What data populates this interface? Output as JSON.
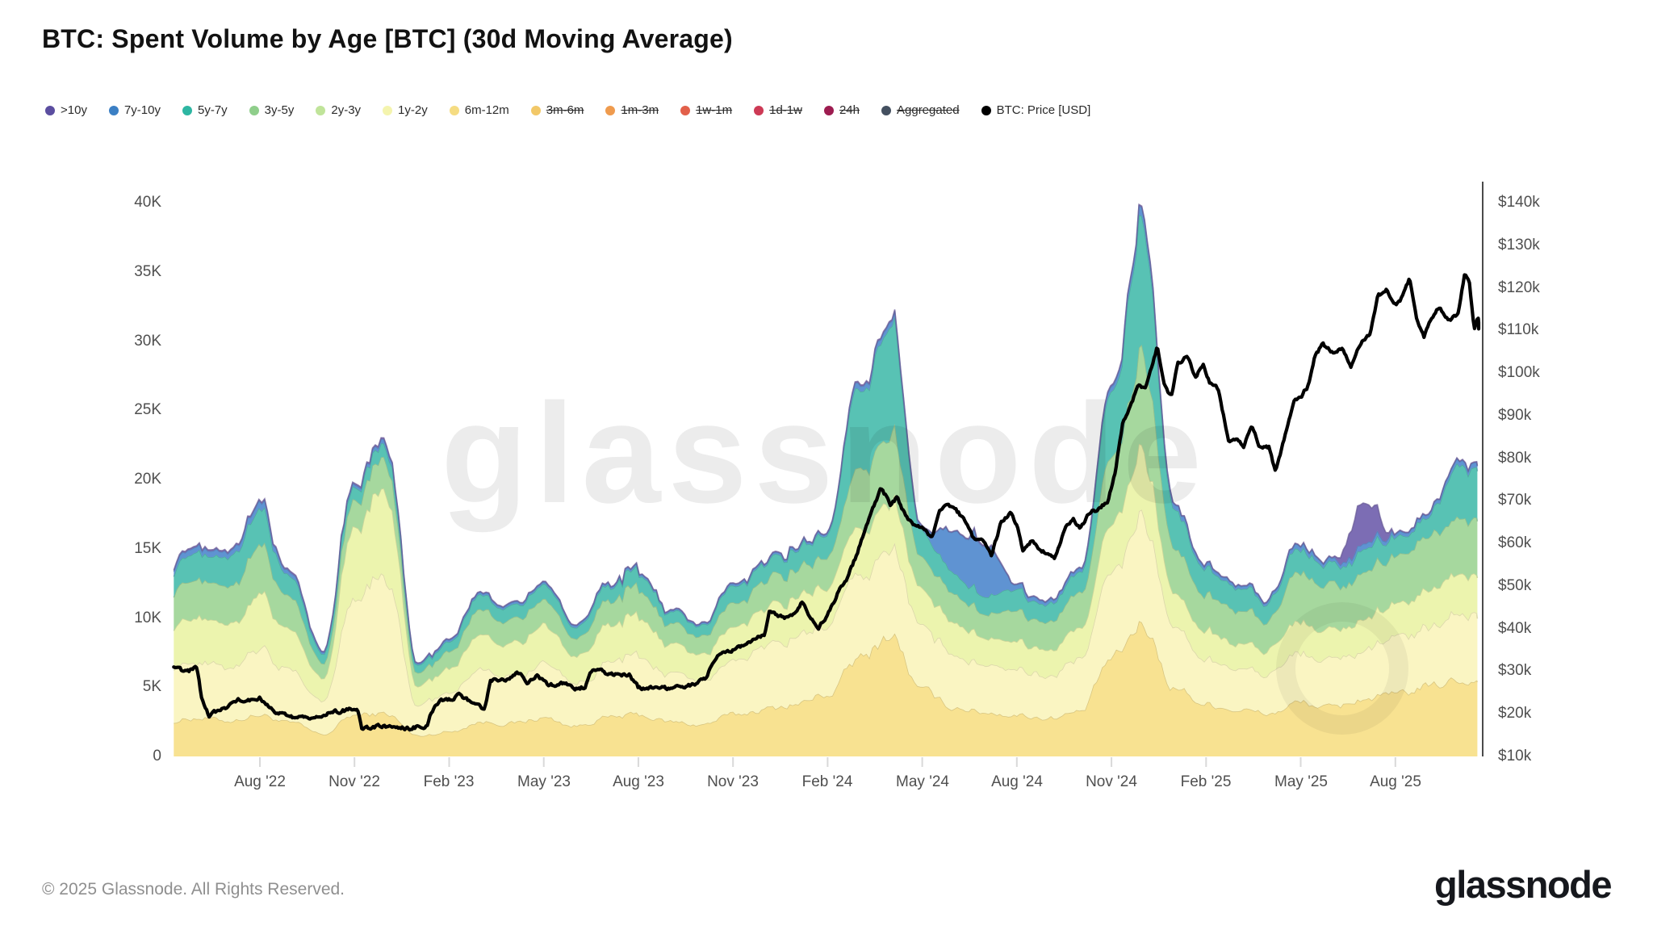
{
  "title": "BTC: Spent Volume by Age [BTC] (30d Moving Average)",
  "watermark": {
    "text": "glassnode"
  },
  "footer": {
    "copyright": "© 2025 Glassnode. All Rights Reserved.",
    "brand": "glassnode"
  },
  "legend": [
    {
      "label": ">10y",
      "color": "#5B4EA0",
      "disabled": false
    },
    {
      "label": "7y-10y",
      "color": "#3B7FC4",
      "disabled": false
    },
    {
      "label": "5y-7y",
      "color": "#2EB6A2",
      "disabled": false
    },
    {
      "label": "3y-5y",
      "color": "#8FCE8B",
      "disabled": false
    },
    {
      "label": "2y-3y",
      "color": "#C0E49A",
      "disabled": false
    },
    {
      "label": "1y-2y",
      "color": "#F4F4AE",
      "disabled": false
    },
    {
      "label": "6m-12m",
      "color": "#F5DC82",
      "disabled": false
    },
    {
      "label": "3m-6m",
      "color": "#F2C868",
      "disabled": true
    },
    {
      "label": "1m-3m",
      "color": "#EF9B4E",
      "disabled": true
    },
    {
      "label": "1w-1m",
      "color": "#E2604A",
      "disabled": true
    },
    {
      "label": "1d-1w",
      "color": "#CD3A55",
      "disabled": true
    },
    {
      "label": "24h",
      "color": "#9D1C50",
      "disabled": true
    },
    {
      "label": "Aggregated",
      "color": "#445060",
      "disabled": true
    },
    {
      "label": "BTC: Price [USD]",
      "color": "#000000",
      "disabled": false
    }
  ],
  "axes": {
    "left": {
      "labels": [
        "0",
        "5K",
        "10K",
        "15K",
        "20K",
        "25K",
        "30K",
        "35K",
        "40K"
      ],
      "values": [
        0,
        5,
        10,
        15,
        20,
        25,
        30,
        35,
        40
      ]
    },
    "right": {
      "labels": [
        "$10k",
        "$20k",
        "$30k",
        "$40k",
        "$50k",
        "$60k",
        "$70k",
        "$80k",
        "$90k",
        "$100k",
        "$110k",
        "$120k",
        "$130k",
        "$140k"
      ],
      "values": [
        10,
        20,
        30,
        40,
        50,
        60,
        70,
        80,
        90,
        100,
        110,
        120,
        130,
        140
      ]
    },
    "x": {
      "labels": [
        "Aug '22",
        "Nov '22",
        "Feb '23",
        "May '23",
        "Aug '23",
        "Nov '23",
        "Feb '24",
        "May '24",
        "Aug '24",
        "Nov '24",
        "Feb '25",
        "May '25",
        "Aug '25"
      ],
      "month_index": [
        3,
        6,
        9,
        12,
        15,
        18,
        21,
        24,
        27,
        30,
        33,
        36,
        39
      ]
    }
  },
  "chart_data": {
    "type": "area",
    "stacked": true,
    "title": "BTC: Spent Volume by Age [BTC] (30d Moving Average)",
    "left_axis_unit": "BTC spent volume (30d MA)",
    "right_axis_unit": "BTC price, USD",
    "ylim_left": [
      0,
      40000
    ],
    "ylim_right": [
      10000,
      140000
    ],
    "grid": false,
    "legend_position": "top",
    "months": [
      "May '22",
      "Jun '22",
      "Jul '22",
      "Aug '22",
      "Sep '22",
      "Oct '22",
      "Nov '22",
      "Dec '22",
      "Jan '23",
      "Feb '23",
      "Mar '23",
      "Apr '23",
      "May '23",
      "Jun '23",
      "Jul '23",
      "Aug '23",
      "Sep '23",
      "Oct '23",
      "Nov '23",
      "Dec '23",
      "Jan '24",
      "Feb '24",
      "Mar '24",
      "Apr '24",
      "May '24",
      "Jun '24",
      "Jul '24",
      "Aug '24",
      "Sep '24",
      "Oct '24",
      "Nov '24",
      "Dec '24",
      "Jan '25",
      "Feb '25",
      "Mar '25",
      "Apr '25",
      "May '25",
      "Jun '25",
      "Jul '25",
      "Aug '25",
      "Sep '25",
      "Oct '25"
    ],
    "series": [
      {
        "name": "6m-12m",
        "fill": "#F8E291",
        "values_k": [
          2.5,
          2.8,
          2.6,
          3.0,
          2.4,
          1.6,
          3.0,
          3.1,
          1.5,
          1.8,
          2.5,
          2.4,
          2.8,
          2.2,
          2.8,
          3.0,
          2.5,
          2.3,
          3.0,
          3.4,
          3.8,
          4.5,
          7.0,
          8.8,
          4.7,
          3.6,
          3.2,
          3.0,
          2.8,
          3.2,
          7.0,
          9.5,
          5.0,
          3.8,
          3.4,
          3.1,
          3.9,
          3.5,
          4.2,
          4.4,
          5.0,
          5.5
        ]
      },
      {
        "name": "1y-2y",
        "fill": "#FAF5C2",
        "values_k": [
          4.0,
          4.2,
          4.0,
          4.8,
          3.6,
          2.4,
          8.6,
          10.0,
          2.2,
          2.8,
          3.8,
          3.5,
          4.0,
          3.0,
          4.0,
          4.3,
          3.4,
          3.1,
          4.0,
          4.5,
          4.8,
          5.0,
          5.8,
          6.3,
          4.7,
          3.8,
          3.4,
          3.4,
          3.2,
          3.6,
          6.0,
          7.5,
          4.2,
          3.4,
          3.1,
          2.9,
          3.6,
          3.2,
          3.6,
          3.8,
          4.3,
          4.8
        ]
      },
      {
        "name": "2y-3y",
        "fill": "#ECF4AE",
        "values_k": [
          3.0,
          3.2,
          3.1,
          3.9,
          2.8,
          1.5,
          5.2,
          5.8,
          1.4,
          1.8,
          2.6,
          2.3,
          2.6,
          2.0,
          2.6,
          2.8,
          2.1,
          1.9,
          2.4,
          2.7,
          2.8,
          2.9,
          3.2,
          3.4,
          2.6,
          2.2,
          2.0,
          2.0,
          1.9,
          2.2,
          3.5,
          4.5,
          2.4,
          2.0,
          1.8,
          1.7,
          2.2,
          2.0,
          2.3,
          2.4,
          2.7,
          3.0
        ]
      },
      {
        "name": "3y-5y",
        "fill": "#A6D89E",
        "values_k": [
          2.5,
          2.8,
          2.7,
          3.6,
          2.3,
          1.1,
          2.0,
          2.2,
          1.0,
          1.2,
          1.8,
          1.6,
          1.8,
          1.3,
          1.8,
          2.0,
          1.5,
          1.3,
          1.7,
          1.9,
          2.0,
          2.2,
          4.2,
          4.8,
          2.3,
          2.0,
          1.8,
          2.2,
          2.0,
          2.6,
          4.5,
          7.0,
          3.2,
          2.6,
          2.4,
          2.2,
          3.6,
          3.1,
          3.4,
          3.3,
          3.8,
          4.0
        ]
      },
      {
        "name": "5y-7y",
        "fill": "#58C2B4",
        "values_k": [
          1.5,
          2.0,
          2.1,
          2.6,
          1.5,
          0.7,
          0.95,
          1.0,
          0.55,
          0.7,
          1.1,
          1.0,
          1.1,
          0.8,
          1.1,
          1.2,
          0.85,
          0.75,
          1.2,
          1.3,
          1.4,
          1.7,
          5.8,
          7.7,
          1.9,
          1.5,
          1.3,
          1.5,
          1.3,
          1.6,
          4.5,
          9.3,
          2.8,
          1.9,
          1.55,
          1.35,
          1.8,
          1.4,
          1.6,
          1.3,
          1.4,
          3.8
        ]
      },
      {
        "name": "7y-10y",
        "fill": "#5F93D2",
        "values_k": [
          0.4,
          0.4,
          0.4,
          0.5,
          0.3,
          0.15,
          0.2,
          0.3,
          0.1,
          0.15,
          0.15,
          0.15,
          0.15,
          0.15,
          0.15,
          0.15,
          0.1,
          0.1,
          0.15,
          0.15,
          0.15,
          0.15,
          0.4,
          0.4,
          0.25,
          3.0,
          3.8,
          0.35,
          0.25,
          0.25,
          0.4,
          0.6,
          0.35,
          0.25,
          0.2,
          0.2,
          0.35,
          0.25,
          0.4,
          0.25,
          0.25,
          0.35
        ]
      },
      {
        "name": ">10y",
        "fill": "#7C6DB4",
        "values_k": [
          0.1,
          0.1,
          0.1,
          0.1,
          0.1,
          0.05,
          0.1,
          0.1,
          0.05,
          0.05,
          0.05,
          0.05,
          0.05,
          0.05,
          0.05,
          0.05,
          0.05,
          0.05,
          0.05,
          0.05,
          0.05,
          0.05,
          0.1,
          0.1,
          0.05,
          0.05,
          0.1,
          0.05,
          0.05,
          0.05,
          0.1,
          0.1,
          0.05,
          0.05,
          0.05,
          0.05,
          0.05,
          0.05,
          3.0,
          0.05,
          0.05,
          0.05
        ]
      }
    ],
    "disabled_series": [
      "3m-6m",
      "1m-3m",
      "1w-1m",
      "1d-1w",
      "24h",
      "Aggregated"
    ],
    "price_line": {
      "name": "BTC: Price [USD]",
      "color": "#000000",
      "axis": "right",
      "points_month_usd_k": [
        [
          0.27,
          30.8
        ],
        [
          0.7,
          29.8
        ],
        [
          1.0,
          31.0
        ],
        [
          1.15,
          24.0
        ],
        [
          1.4,
          19.5
        ],
        [
          1.7,
          21.0
        ],
        [
          2.0,
          21.5
        ],
        [
          2.3,
          23.3
        ],
        [
          2.6,
          23.0
        ],
        [
          3.0,
          23.8
        ],
        [
          3.2,
          22.0
        ],
        [
          3.5,
          20.2
        ],
        [
          3.8,
          19.8
        ],
        [
          4.1,
          19.2
        ],
        [
          4.4,
          19.4
        ],
        [
          4.7,
          19.1
        ],
        [
          5.0,
          19.6
        ],
        [
          5.3,
          20.4
        ],
        [
          5.6,
          20.7
        ],
        [
          5.9,
          21.0
        ],
        [
          6.1,
          20.5
        ],
        [
          6.25,
          16.2
        ],
        [
          6.5,
          16.8
        ],
        [
          6.8,
          17.1
        ],
        [
          7.1,
          16.9
        ],
        [
          7.4,
          16.7
        ],
        [
          7.7,
          16.6
        ],
        [
          8.0,
          16.9
        ],
        [
          8.3,
          17.1
        ],
        [
          8.45,
          20.6
        ],
        [
          8.7,
          23.1
        ],
        [
          9.0,
          23.3
        ],
        [
          9.3,
          24.4
        ],
        [
          9.6,
          23.1
        ],
        [
          9.9,
          22.4
        ],
        [
          10.1,
          20.4
        ],
        [
          10.3,
          27.6
        ],
        [
          10.6,
          28.1
        ],
        [
          10.9,
          28.3
        ],
        [
          11.2,
          29.6
        ],
        [
          11.5,
          27.4
        ],
        [
          11.8,
          29.1
        ],
        [
          12.1,
          27.0
        ],
        [
          12.4,
          26.9
        ],
        [
          12.7,
          27.3
        ],
        [
          13.0,
          25.9
        ],
        [
          13.3,
          26.4
        ],
        [
          13.55,
          30.4
        ],
        [
          13.8,
          30.1
        ],
        [
          14.1,
          29.3
        ],
        [
          14.4,
          29.2
        ],
        [
          14.7,
          29.3
        ],
        [
          15.0,
          26.1
        ],
        [
          15.3,
          26.0
        ],
        [
          15.6,
          26.2
        ],
        [
          15.9,
          25.9
        ],
        [
          16.2,
          26.6
        ],
        [
          16.5,
          26.2
        ],
        [
          16.8,
          27.1
        ],
        [
          17.1,
          28.1
        ],
        [
          17.35,
          31.5
        ],
        [
          17.55,
          34.2
        ],
        [
          17.8,
          34.6
        ],
        [
          18.1,
          35.2
        ],
        [
          18.4,
          36.6
        ],
        [
          18.7,
          37.6
        ],
        [
          19.0,
          38.8
        ],
        [
          19.15,
          43.8
        ],
        [
          19.4,
          43.1
        ],
        [
          19.7,
          42.6
        ],
        [
          20.0,
          44.1
        ],
        [
          20.2,
          46.6
        ],
        [
          20.45,
          42.9
        ],
        [
          20.7,
          40.1
        ],
        [
          21.0,
          43.1
        ],
        [
          21.3,
          48.1
        ],
        [
          21.6,
          51.6
        ],
        [
          21.9,
          57.0
        ],
        [
          22.2,
          63.5
        ],
        [
          22.5,
          69.5
        ],
        [
          22.7,
          73.0
        ],
        [
          23.0,
          69.2
        ],
        [
          23.2,
          70.8
        ],
        [
          23.5,
          66.0
        ],
        [
          23.8,
          63.6
        ],
        [
          24.0,
          64.2
        ],
        [
          24.3,
          61.2
        ],
        [
          24.55,
          67.6
        ],
        [
          24.8,
          69.1
        ],
        [
          25.0,
          68.2
        ],
        [
          25.3,
          66.1
        ],
        [
          25.6,
          61.2
        ],
        [
          26.0,
          60.4
        ],
        [
          26.2,
          57.2
        ],
        [
          26.5,
          64.8
        ],
        [
          26.8,
          67.1
        ],
        [
          27.0,
          64.5
        ],
        [
          27.2,
          58.2
        ],
        [
          27.45,
          60.6
        ],
        [
          27.7,
          58.9
        ],
        [
          27.95,
          57.4
        ],
        [
          28.2,
          56.3
        ],
        [
          28.5,
          63.3
        ],
        [
          28.8,
          65.9
        ],
        [
          29.0,
          63.4
        ],
        [
          29.3,
          67.2
        ],
        [
          29.6,
          68.1
        ],
        [
          29.9,
          70.0
        ],
        [
          30.1,
          76.0
        ],
        [
          30.35,
          88.0
        ],
        [
          30.6,
          92.0
        ],
        [
          30.85,
          97.2
        ],
        [
          31.05,
          96.1
        ],
        [
          31.25,
          101.2
        ],
        [
          31.45,
          106.1
        ],
        [
          31.65,
          97.6
        ],
        [
          31.9,
          94.3
        ],
        [
          32.1,
          102.2
        ],
        [
          32.4,
          104.1
        ],
        [
          32.65,
          99.1
        ],
        [
          32.9,
          102.1
        ],
        [
          33.1,
          97.9
        ],
        [
          33.4,
          96.1
        ],
        [
          33.7,
          84.4
        ],
        [
          34.0,
          84.1
        ],
        [
          34.2,
          82.9
        ],
        [
          34.45,
          87.6
        ],
        [
          34.7,
          82.5
        ],
        [
          35.0,
          82.6
        ],
        [
          35.2,
          76.4
        ],
        [
          35.5,
          85.1
        ],
        [
          35.8,
          94.1
        ],
        [
          36.0,
          94.3
        ],
        [
          36.25,
          97.2
        ],
        [
          36.45,
          103.8
        ],
        [
          36.7,
          106.9
        ],
        [
          37.0,
          104.7
        ],
        [
          37.3,
          105.6
        ],
        [
          37.6,
          101.6
        ],
        [
          37.9,
          107.1
        ],
        [
          38.2,
          109.0
        ],
        [
          38.45,
          118.1
        ],
        [
          38.7,
          119.6
        ],
        [
          39.0,
          115.9
        ],
        [
          39.2,
          117.6
        ],
        [
          39.45,
          122.1
        ],
        [
          39.65,
          113.3
        ],
        [
          39.9,
          108.3
        ],
        [
          40.1,
          112.1
        ],
        [
          40.4,
          115.6
        ],
        [
          40.7,
          112.4
        ],
        [
          41.0,
          114.1
        ],
        [
          41.2,
          123.6
        ],
        [
          41.35,
          121.1
        ],
        [
          41.5,
          110.2
        ],
        [
          41.62,
          113.6
        ],
        [
          41.74,
          109.8
        ]
      ]
    }
  }
}
